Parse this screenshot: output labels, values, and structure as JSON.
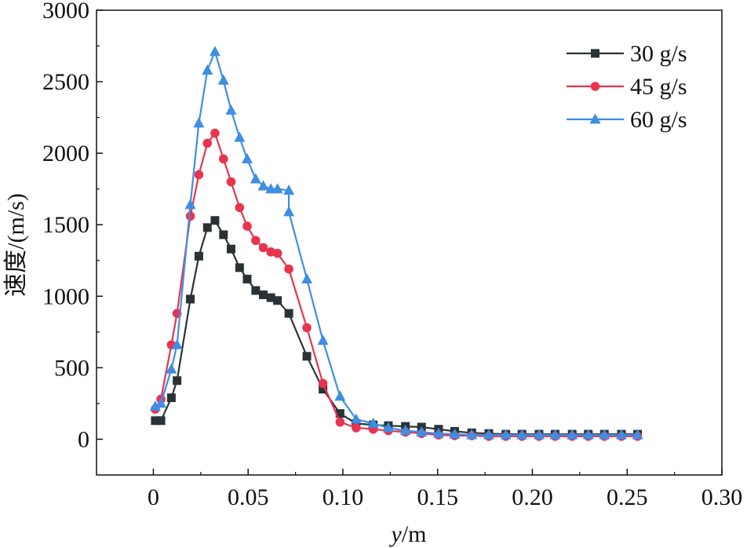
{
  "chart_data": {
    "type": "line",
    "title": "",
    "xlabel_italic": "y",
    "xlabel_unit": "/m",
    "ylabel": "速度/(m/s)",
    "xlim": [
      -0.03,
      0.3
    ],
    "ylim": [
      -250,
      3000
    ],
    "x_ticks": [
      0,
      0.05,
      0.1,
      0.15,
      0.2,
      0.25,
      0.3
    ],
    "x_tick_labels": [
      "0",
      "0.05",
      "0.10",
      "0.15",
      "0.20",
      "0.25",
      "0.30"
    ],
    "y_ticks": [
      0,
      500,
      1000,
      1500,
      2000,
      2500,
      3000
    ],
    "y_tick_labels": [
      "0",
      "500",
      "1000",
      "1500",
      "2000",
      "2500",
      "3000"
    ],
    "grid": false,
    "legend_position": "top-right",
    "series": [
      {
        "name": "30 g/s",
        "color": "#2b3236",
        "marker": "square",
        "points": [
          [
            0.001,
            130
          ],
          [
            0.004,
            130
          ],
          [
            0.0095,
            290
          ],
          [
            0.0125,
            410
          ],
          [
            0.0195,
            980
          ],
          [
            0.024,
            1280
          ],
          [
            0.0285,
            1480
          ],
          [
            0.0325,
            1530
          ],
          [
            0.037,
            1430
          ],
          [
            0.041,
            1330
          ],
          [
            0.0455,
            1200
          ],
          [
            0.0495,
            1120
          ],
          [
            0.054,
            1040
          ],
          [
            0.058,
            1010
          ],
          [
            0.062,
            990
          ],
          [
            0.0655,
            970
          ],
          [
            0.0715,
            880
          ],
          [
            0.081,
            580
          ],
          [
            0.0895,
            350
          ],
          [
            0.0985,
            180
          ],
          [
            0.107,
            110
          ],
          [
            0.116,
            100
          ],
          [
            0.124,
            95
          ],
          [
            0.133,
            90
          ],
          [
            0.1415,
            85
          ],
          [
            0.1505,
            70
          ],
          [
            0.159,
            55
          ],
          [
            0.168,
            45
          ],
          [
            0.177,
            40
          ],
          [
            0.186,
            35
          ],
          [
            0.1945,
            35
          ],
          [
            0.2035,
            35
          ],
          [
            0.212,
            35
          ],
          [
            0.221,
            35
          ],
          [
            0.2295,
            35
          ],
          [
            0.238,
            35
          ],
          [
            0.247,
            35
          ],
          [
            0.2555,
            35
          ]
        ]
      },
      {
        "name": "45 g/s",
        "color": "#e8344f",
        "marker": "circle",
        "points": [
          [
            0.001,
            210
          ],
          [
            0.004,
            280
          ],
          [
            0.0095,
            660
          ],
          [
            0.0125,
            880
          ],
          [
            0.0195,
            1560
          ],
          [
            0.024,
            1850
          ],
          [
            0.0285,
            2070
          ],
          [
            0.0325,
            2140
          ],
          [
            0.037,
            1960
          ],
          [
            0.041,
            1800
          ],
          [
            0.0455,
            1620
          ],
          [
            0.0495,
            1490
          ],
          [
            0.054,
            1390
          ],
          [
            0.058,
            1340
          ],
          [
            0.062,
            1310
          ],
          [
            0.0655,
            1300
          ],
          [
            0.0715,
            1190
          ],
          [
            0.081,
            780
          ],
          [
            0.0895,
            390
          ],
          [
            0.0985,
            120
          ],
          [
            0.107,
            80
          ],
          [
            0.116,
            70
          ],
          [
            0.124,
            60
          ],
          [
            0.133,
            50
          ],
          [
            0.1415,
            40
          ],
          [
            0.1505,
            30
          ],
          [
            0.159,
            25
          ],
          [
            0.168,
            25
          ],
          [
            0.177,
            20
          ],
          [
            0.186,
            20
          ],
          [
            0.1945,
            20
          ],
          [
            0.2035,
            20
          ],
          [
            0.212,
            20
          ],
          [
            0.221,
            20
          ],
          [
            0.2295,
            20
          ],
          [
            0.238,
            20
          ],
          [
            0.247,
            20
          ],
          [
            0.2555,
            20
          ]
        ]
      },
      {
        "name": "60 g/s",
        "color": "#3d8ee4",
        "marker": "triangle",
        "points": [
          [
            0.001,
            230
          ],
          [
            0.004,
            250
          ],
          [
            0.0095,
            490
          ],
          [
            0.0125,
            660
          ],
          [
            0.0195,
            1640
          ],
          [
            0.024,
            2210
          ],
          [
            0.0285,
            2580
          ],
          [
            0.0325,
            2710
          ],
          [
            0.037,
            2510
          ],
          [
            0.041,
            2300
          ],
          [
            0.0455,
            2110
          ],
          [
            0.0495,
            1960
          ],
          [
            0.054,
            1820
          ],
          [
            0.058,
            1770
          ],
          [
            0.062,
            1750
          ],
          [
            0.0655,
            1750
          ],
          [
            0.0715,
            1740
          ],
          [
            0.0715,
            1590
          ],
          [
            0.081,
            1120
          ],
          [
            0.0895,
            690
          ],
          [
            0.0985,
            300
          ],
          [
            0.107,
            140
          ],
          [
            0.116,
            110
          ],
          [
            0.124,
            80
          ],
          [
            0.133,
            60
          ],
          [
            0.1415,
            50
          ],
          [
            0.1505,
            40
          ],
          [
            0.159,
            35
          ],
          [
            0.168,
            30
          ],
          [
            0.177,
            30
          ],
          [
            0.186,
            30
          ],
          [
            0.1945,
            30
          ],
          [
            0.2035,
            30
          ],
          [
            0.212,
            30
          ],
          [
            0.221,
            30
          ],
          [
            0.2295,
            30
          ],
          [
            0.238,
            30
          ],
          [
            0.247,
            30
          ],
          [
            0.2555,
            30
          ]
        ]
      }
    ]
  }
}
